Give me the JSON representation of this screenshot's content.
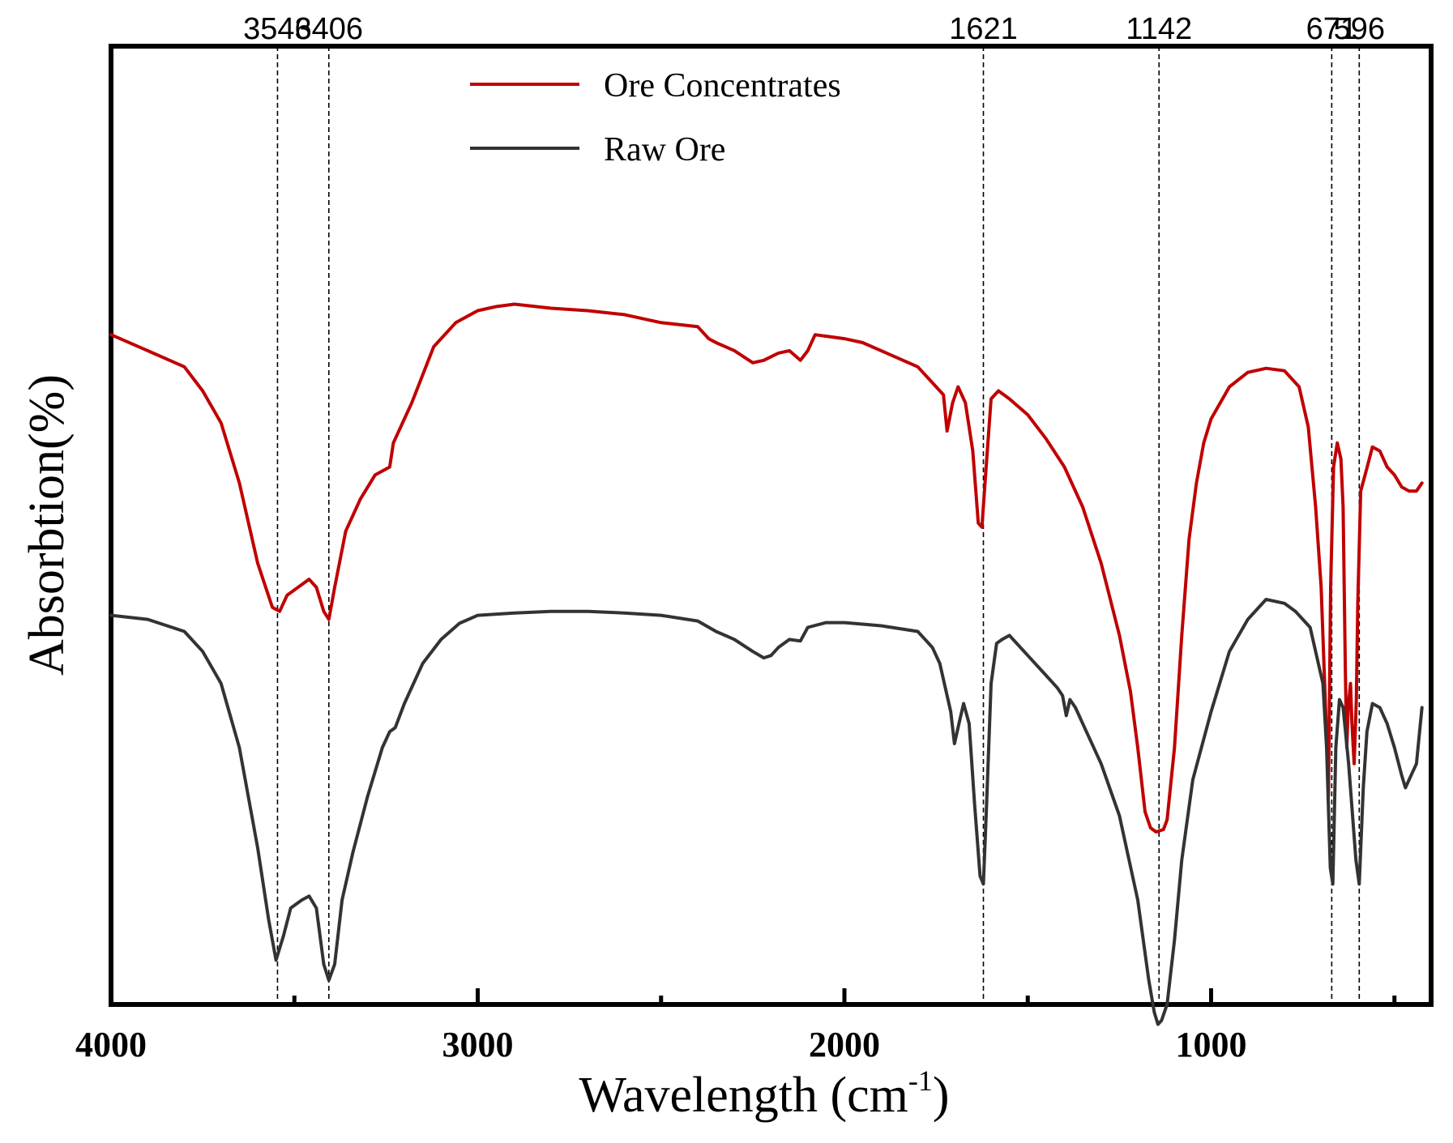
{
  "chart_data": {
    "type": "line",
    "title": "",
    "xlabel": "Wavelength (cm",
    "xlabel_superscript": "-1",
    "xlabel_suffix": ")",
    "ylabel": "Absorbtion(%)",
    "xlim": [
      4000,
      400
    ],
    "x_reversed": true,
    "ylim": [
      0,
      100
    ],
    "y_ticks_shown": false,
    "grid": false,
    "legend_position": "top-center",
    "x_major_ticks": [
      4000,
      3000,
      2000,
      1000
    ],
    "x_minor_ticks": [
      3500,
      2500,
      1500,
      500
    ],
    "peak_markers": [
      {
        "x": 3546,
        "label": "3546"
      },
      {
        "x": 3406,
        "label": "3406"
      },
      {
        "x": 1621,
        "label": "1621"
      },
      {
        "x": 1142,
        "label": "1142"
      },
      {
        "x": 671,
        "label": "671"
      },
      {
        "x": 596,
        "label": "596"
      }
    ],
    "series": [
      {
        "name": "Ore Concentrates",
        "color": "#c00000",
        "points": [
          [
            4000,
            81.5
          ],
          [
            3900,
            79.5
          ],
          [
            3800,
            77.5
          ],
          [
            3750,
            74.5
          ],
          [
            3700,
            70.5
          ],
          [
            3650,
            63
          ],
          [
            3600,
            53
          ],
          [
            3560,
            47.5
          ],
          [
            3540,
            47
          ],
          [
            3520,
            49
          ],
          [
            3490,
            50
          ],
          [
            3460,
            51
          ],
          [
            3440,
            50
          ],
          [
            3420,
            47
          ],
          [
            3406,
            46
          ],
          [
            3390,
            50
          ],
          [
            3360,
            57
          ],
          [
            3320,
            61
          ],
          [
            3280,
            64
          ],
          [
            3240,
            65
          ],
          [
            3230,
            68
          ],
          [
            3180,
            73
          ],
          [
            3120,
            80
          ],
          [
            3060,
            83
          ],
          [
            3000,
            84.5
          ],
          [
            2950,
            85
          ],
          [
            2900,
            85.3
          ],
          [
            2800,
            84.8
          ],
          [
            2700,
            84.5
          ],
          [
            2600,
            84
          ],
          [
            2500,
            83
          ],
          [
            2400,
            82.5
          ],
          [
            2370,
            81
          ],
          [
            2350,
            80.5
          ],
          [
            2300,
            79.5
          ],
          [
            2250,
            78
          ],
          [
            2220,
            78.3
          ],
          [
            2180,
            79.2
          ],
          [
            2150,
            79.5
          ],
          [
            2120,
            78.3
          ],
          [
            2100,
            79.5
          ],
          [
            2080,
            81.5
          ],
          [
            2000,
            81
          ],
          [
            1950,
            80.5
          ],
          [
            1900,
            79.5
          ],
          [
            1800,
            77.5
          ],
          [
            1760,
            75.5
          ],
          [
            1730,
            74
          ],
          [
            1720,
            69.5
          ],
          [
            1705,
            73
          ],
          [
            1690,
            75
          ],
          [
            1670,
            73
          ],
          [
            1650,
            67
          ],
          [
            1635,
            58
          ],
          [
            1625,
            57.5
          ],
          [
            1615,
            64
          ],
          [
            1600,
            73.5
          ],
          [
            1580,
            74.5
          ],
          [
            1550,
            73.5
          ],
          [
            1500,
            71.5
          ],
          [
            1450,
            68.5
          ],
          [
            1400,
            65
          ],
          [
            1350,
            60
          ],
          [
            1300,
            53
          ],
          [
            1250,
            44
          ],
          [
            1220,
            37
          ],
          [
            1200,
            30
          ],
          [
            1180,
            22
          ],
          [
            1165,
            20
          ],
          [
            1150,
            19.5
          ],
          [
            1130,
            19.8
          ],
          [
            1120,
            21
          ],
          [
            1100,
            30
          ],
          [
            1080,
            44
          ],
          [
            1060,
            56
          ],
          [
            1040,
            63
          ],
          [
            1020,
            68
          ],
          [
            1000,
            71
          ],
          [
            950,
            75
          ],
          [
            900,
            76.8
          ],
          [
            850,
            77.3
          ],
          [
            800,
            77
          ],
          [
            760,
            75
          ],
          [
            735,
            70
          ],
          [
            715,
            60
          ],
          [
            700,
            50
          ],
          [
            688,
            35
          ],
          [
            680,
            24
          ],
          [
            674,
            50
          ],
          [
            666,
            65
          ],
          [
            656,
            68
          ],
          [
            646,
            66
          ],
          [
            640,
            60
          ],
          [
            634,
            40
          ],
          [
            630,
            30
          ],
          [
            626,
            35
          ],
          [
            620,
            38
          ],
          [
            616,
            33
          ],
          [
            610,
            28
          ],
          [
            604,
            36
          ],
          [
            600,
            48
          ],
          [
            592,
            62
          ],
          [
            580,
            64
          ],
          [
            560,
            67.5
          ],
          [
            540,
            67
          ],
          [
            520,
            65
          ],
          [
            500,
            64
          ],
          [
            480,
            62.5
          ],
          [
            460,
            62
          ],
          [
            440,
            62
          ],
          [
            425,
            63
          ]
        ]
      },
      {
        "name": "Raw Ore",
        "color": "#333333",
        "points": [
          [
            4000,
            46.5
          ],
          [
            3900,
            46
          ],
          [
            3800,
            44.5
          ],
          [
            3750,
            42
          ],
          [
            3700,
            38
          ],
          [
            3650,
            30
          ],
          [
            3600,
            17.5
          ],
          [
            3570,
            8.5
          ],
          [
            3550,
            3.5
          ],
          [
            3530,
            6.5
          ],
          [
            3510,
            10
          ],
          [
            3480,
            11
          ],
          [
            3460,
            11.5
          ],
          [
            3440,
            10
          ],
          [
            3420,
            3
          ],
          [
            3406,
            1
          ],
          [
            3390,
            3
          ],
          [
            3370,
            11
          ],
          [
            3340,
            17
          ],
          [
            3300,
            24
          ],
          [
            3260,
            30
          ],
          [
            3240,
            32
          ],
          [
            3225,
            32.5
          ],
          [
            3200,
            35.5
          ],
          [
            3150,
            40.5
          ],
          [
            3100,
            43.5
          ],
          [
            3050,
            45.5
          ],
          [
            3000,
            46.5
          ],
          [
            2900,
            46.8
          ],
          [
            2800,
            47
          ],
          [
            2700,
            47
          ],
          [
            2600,
            46.8
          ],
          [
            2500,
            46.5
          ],
          [
            2400,
            45.8
          ],
          [
            2350,
            44.5
          ],
          [
            2300,
            43.5
          ],
          [
            2250,
            42
          ],
          [
            2220,
            41.2
          ],
          [
            2200,
            41.5
          ],
          [
            2180,
            42.5
          ],
          [
            2150,
            43.5
          ],
          [
            2120,
            43.3
          ],
          [
            2100,
            45
          ],
          [
            2050,
            45.6
          ],
          [
            2000,
            45.6
          ],
          [
            1950,
            45.4
          ],
          [
            1900,
            45.2
          ],
          [
            1800,
            44.5
          ],
          [
            1760,
            42.5
          ],
          [
            1740,
            40.5
          ],
          [
            1730,
            38.5
          ],
          [
            1710,
            34.5
          ],
          [
            1700,
            30.5
          ],
          [
            1685,
            33.5
          ],
          [
            1675,
            35.5
          ],
          [
            1660,
            33
          ],
          [
            1645,
            23
          ],
          [
            1630,
            14
          ],
          [
            1621,
            13
          ],
          [
            1613,
            22
          ],
          [
            1600,
            38
          ],
          [
            1585,
            43
          ],
          [
            1570,
            43.5
          ],
          [
            1550,
            44
          ],
          [
            1500,
            41.5
          ],
          [
            1450,
            39
          ],
          [
            1420,
            37.5
          ],
          [
            1405,
            36.5
          ],
          [
            1395,
            34
          ],
          [
            1385,
            36
          ],
          [
            1370,
            35
          ],
          [
            1350,
            33
          ],
          [
            1300,
            28
          ],
          [
            1250,
            21.5
          ],
          [
            1200,
            11
          ],
          [
            1170,
            1
          ],
          [
            1155,
            -3
          ],
          [
            1145,
            -4.5
          ],
          [
            1135,
            -4
          ],
          [
            1120,
            -2
          ],
          [
            1100,
            6
          ],
          [
            1080,
            16
          ],
          [
            1050,
            26
          ],
          [
            1000,
            34.5
          ],
          [
            950,
            42
          ],
          [
            900,
            46
          ],
          [
            850,
            48.5
          ],
          [
            800,
            48
          ],
          [
            770,
            47
          ],
          [
            730,
            45
          ],
          [
            710,
            41
          ],
          [
            695,
            38
          ],
          [
            685,
            30
          ],
          [
            675,
            15
          ],
          [
            668,
            13
          ],
          [
            660,
            30
          ],
          [
            650,
            36
          ],
          [
            640,
            35
          ],
          [
            625,
            28
          ],
          [
            615,
            22
          ],
          [
            605,
            16
          ],
          [
            596,
            13
          ],
          [
            585,
            25
          ],
          [
            575,
            32
          ],
          [
            560,
            35.5
          ],
          [
            540,
            35
          ],
          [
            520,
            33
          ],
          [
            500,
            30
          ],
          [
            480,
            26.5
          ],
          [
            470,
            25
          ],
          [
            455,
            26.5
          ],
          [
            440,
            28
          ],
          [
            425,
            35
          ]
        ]
      }
    ]
  }
}
